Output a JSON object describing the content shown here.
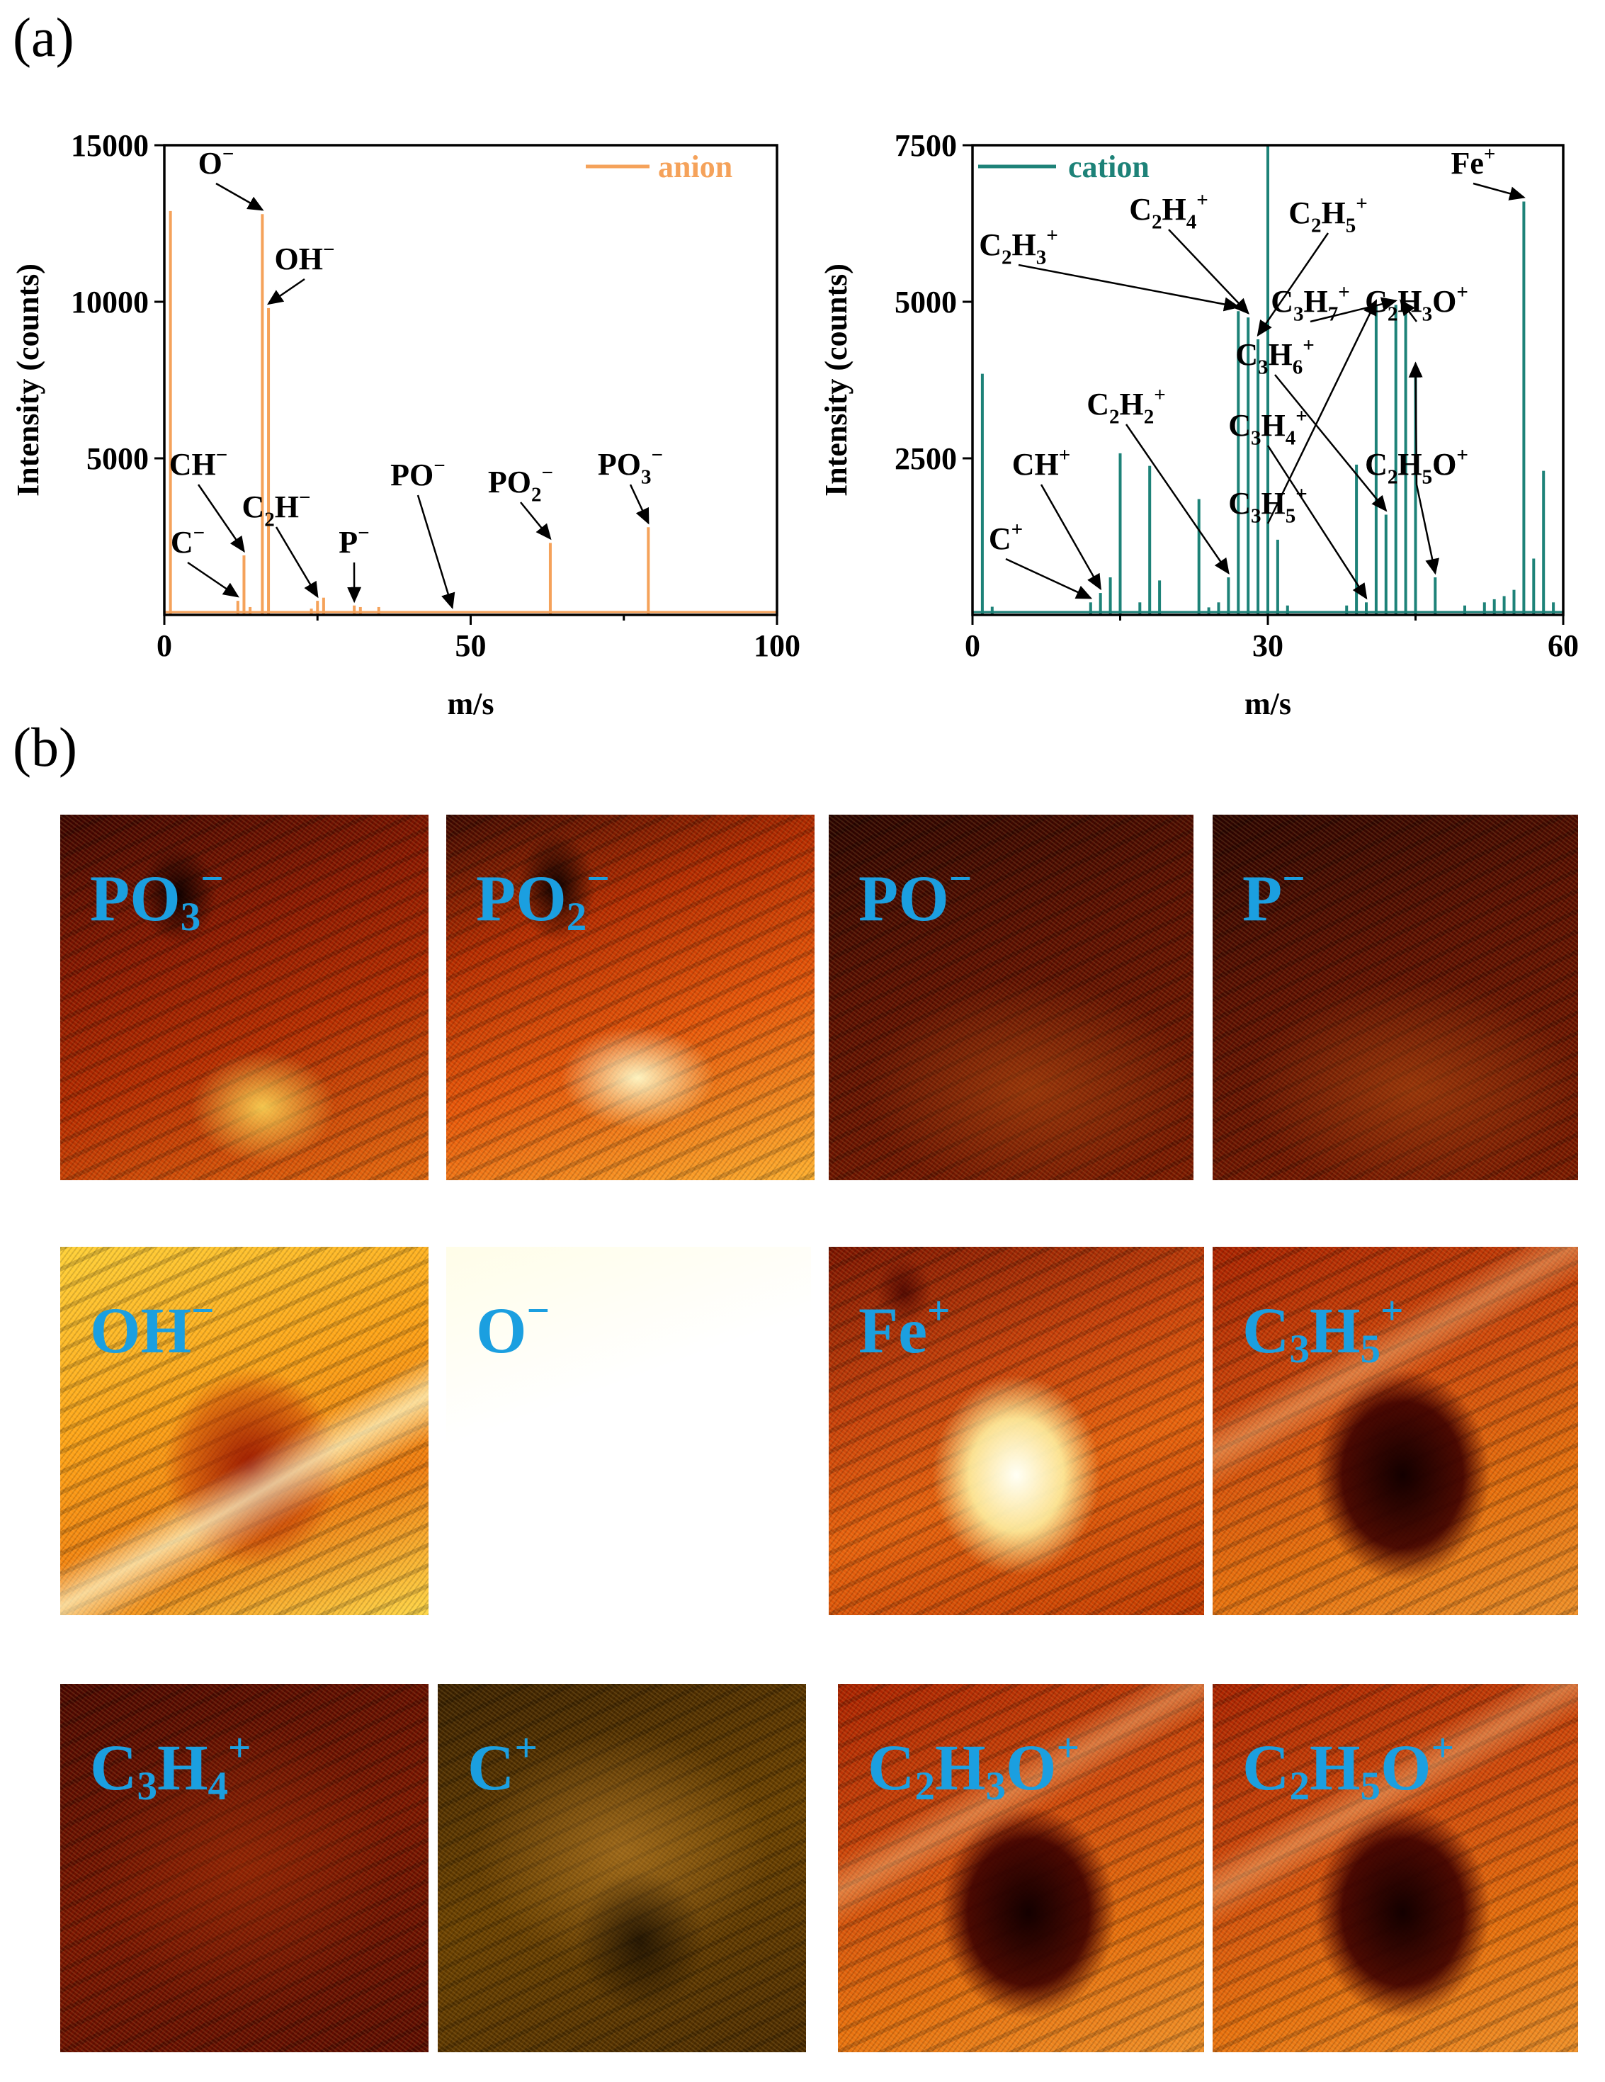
{
  "panel_labels": {
    "a": "(a)",
    "b": "(b)"
  },
  "chart_data": [
    {
      "type": "bar",
      "name": "anion spectrum",
      "xlabel": "m/s",
      "ylabel": "Intensity (counts)",
      "xlim": [
        0,
        100
      ],
      "ylim": [
        0,
        15000
      ],
      "xticks": [
        0,
        50,
        100
      ],
      "yticks": [
        5000,
        10000,
        15000
      ],
      "legend": {
        "label": "anion",
        "position": "top-right"
      },
      "color": "#f5a25a",
      "peaks": [
        {
          "x": 1,
          "y": 12900
        },
        {
          "x": 12,
          "y": 450
        },
        {
          "x": 13,
          "y": 1900
        },
        {
          "x": 14,
          "y": 250
        },
        {
          "x": 16,
          "y": 12800
        },
        {
          "x": 17,
          "y": 9800
        },
        {
          "x": 24,
          "y": 200
        },
        {
          "x": 25,
          "y": 450
        },
        {
          "x": 26,
          "y": 550
        },
        {
          "x": 31,
          "y": 300
        },
        {
          "x": 32,
          "y": 250
        },
        {
          "x": 35,
          "y": 250
        },
        {
          "x": 63,
          "y": 2300
        },
        {
          "x": 79,
          "y": 2800
        }
      ],
      "annotations": [
        {
          "base": "O",
          "sub": "",
          "charge": "−",
          "peak_x": 16,
          "peak_y": 12800
        },
        {
          "base": "OH",
          "sub": "",
          "charge": "−",
          "peak_x": 17,
          "peak_y": 9800
        },
        {
          "base": "CH",
          "sub": "",
          "charge": "−",
          "peak_x": 13,
          "peak_y": 1900
        },
        {
          "base": "C",
          "sub": "",
          "charge": "−",
          "peak_x": 12,
          "peak_y": 450
        },
        {
          "base": "C",
          "sub": "2",
          "tail": "H",
          "charge": "−",
          "peak_x": 25,
          "peak_y": 450
        },
        {
          "base": "P",
          "sub": "",
          "charge": "−",
          "peak_x": 31,
          "peak_y": 300
        },
        {
          "base": "PO",
          "sub": "",
          "charge": "−",
          "peak_x": 47,
          "peak_y": 100
        },
        {
          "base": "PO",
          "sub": "2",
          "charge": "−",
          "peak_x": 63,
          "peak_y": 2300
        },
        {
          "base": "PO",
          "sub": "3",
          "charge": "−",
          "peak_x": 79,
          "peak_y": 2800
        }
      ]
    },
    {
      "type": "bar",
      "name": "cation spectrum",
      "xlabel": "m/s",
      "ylabel": "Intensity (counts)",
      "xlim": [
        0,
        60
      ],
      "ylim": [
        0,
        7500
      ],
      "xticks": [
        0,
        30,
        60
      ],
      "yticks": [
        2500,
        5000,
        7500
      ],
      "legend": {
        "label": "cation",
        "position": "top-left"
      },
      "color": "#1d8278",
      "peaks": [
        {
          "x": 1,
          "y": 3850
        },
        {
          "x": 2,
          "y": 130
        },
        {
          "x": 12,
          "y": 200
        },
        {
          "x": 13,
          "y": 350
        },
        {
          "x": 14,
          "y": 600
        },
        {
          "x": 15,
          "y": 2580
        },
        {
          "x": 17,
          "y": 200
        },
        {
          "x": 18,
          "y": 2380
        },
        {
          "x": 19,
          "y": 550
        },
        {
          "x": 23,
          "y": 1850
        },
        {
          "x": 24,
          "y": 120
        },
        {
          "x": 25,
          "y": 200
        },
        {
          "x": 26,
          "y": 600
        },
        {
          "x": 27,
          "y": 4850
        },
        {
          "x": 28,
          "y": 4750
        },
        {
          "x": 29,
          "y": 4400
        },
        {
          "x": 30,
          "y": 7500
        },
        {
          "x": 31,
          "y": 1200
        },
        {
          "x": 32,
          "y": 150
        },
        {
          "x": 38,
          "y": 150
        },
        {
          "x": 39,
          "y": 2400
        },
        {
          "x": 40,
          "y": 200
        },
        {
          "x": 41,
          "y": 4950
        },
        {
          "x": 42,
          "y": 1600
        },
        {
          "x": 43,
          "y": 4950
        },
        {
          "x": 44,
          "y": 4950
        },
        {
          "x": 45,
          "y": 3950
        },
        {
          "x": 47,
          "y": 600
        },
        {
          "x": 50,
          "y": 150
        },
        {
          "x": 52,
          "y": 200
        },
        {
          "x": 53,
          "y": 250
        },
        {
          "x": 54,
          "y": 300
        },
        {
          "x": 55,
          "y": 400
        },
        {
          "x": 56,
          "y": 6600
        },
        {
          "x": 57,
          "y": 900
        },
        {
          "x": 58,
          "y": 2300
        },
        {
          "x": 59,
          "y": 200
        }
      ],
      "annotations": [
        {
          "base": "Fe",
          "sub": "",
          "charge": "+",
          "peak_x": 56,
          "peak_y": 6600
        },
        {
          "base": "C",
          "sub": "2",
          "tail": "H",
          "sub2": "4",
          "charge": "+",
          "peak_x": 28,
          "peak_y": 4750
        },
        {
          "base": "C",
          "sub": "2",
          "tail": "H",
          "sub2": "5",
          "charge": "+",
          "peak_x": 29,
          "peak_y": 4400
        },
        {
          "base": "C",
          "sub": "2",
          "tail": "H",
          "sub2": "3",
          "charge": "+",
          "peak_x": 27,
          "peak_y": 4850
        },
        {
          "base": "C",
          "sub": "3",
          "tail": "H",
          "sub2": "7",
          "charge": "+",
          "peak_x": 43,
          "peak_y": 4950
        },
        {
          "base": "C",
          "sub": "2",
          "tail": "H",
          "sub2": "3",
          "tail2": "O",
          "charge": "+",
          "peak_x": 43.5,
          "peak_y": 4950
        },
        {
          "base": "C",
          "sub": "3",
          "tail": "H",
          "sub2": "6",
          "charge": "+",
          "peak_x": 42,
          "peak_y": 1600
        },
        {
          "base": "C",
          "sub": "2",
          "tail": "H",
          "sub2": "2",
          "charge": "+",
          "peak_x": 26,
          "peak_y": 600
        },
        {
          "base": "C",
          "sub": "3",
          "tail": "H",
          "sub2": "4",
          "charge": "+",
          "peak_x": 40,
          "peak_y": 200
        },
        {
          "base": "CH",
          "sub": "",
          "charge": "+",
          "peak_x": 13,
          "peak_y": 350
        },
        {
          "base": "C",
          "sub": "2",
          "tail": "H",
          "sub2": "5",
          "tail2": "O",
          "charge": "+",
          "peak_x": 45,
          "peak_y": 3950
        },
        {
          "base": "C",
          "sub": "3",
          "tail": "H",
          "sub2": "5",
          "charge": "+",
          "peak_x": 41,
          "peak_y": 4950
        },
        {
          "base": "C",
          "sub": "",
          "charge": "+",
          "peak_x": 12,
          "peak_y": 200
        },
        {
          "base": "C",
          "sub": "2",
          "tail": "H",
          "sub2": "5",
          "tail2": "O",
          "charge": "+",
          "peak_x": 47,
          "peak_y": 600
        }
      ]
    }
  ],
  "ion_maps": [
    {
      "id": "PO3-",
      "base": "PO",
      "sub": "3",
      "sup": "−",
      "palette": "hot-mid"
    },
    {
      "id": "PO2-",
      "base": "PO",
      "sub": "2",
      "sup": "−",
      "palette": "hot-bright"
    },
    {
      "id": "PO-",
      "base": "PO",
      "sub": "",
      "sup": "−",
      "palette": "noisy-dark"
    },
    {
      "id": "P-",
      "base": "P",
      "sub": "",
      "sup": "−",
      "palette": "noisy-dark"
    },
    {
      "id": "OH-",
      "base": "OH",
      "sub": "",
      "sup": "−",
      "palette": "yellow-dark-spot"
    },
    {
      "id": "O-",
      "base": "O",
      "sub": "",
      "sup": "−",
      "palette": "white"
    },
    {
      "id": "Fe+",
      "base": "Fe",
      "sub": "",
      "sup": "+",
      "palette": "bright-spot"
    },
    {
      "id": "C3H5+",
      "base": "C",
      "sub": "3",
      "tail": "H",
      "sub2": "5",
      "sup": "+",
      "palette": "dark-spot"
    },
    {
      "id": "C3H4+",
      "base": "C",
      "sub": "3",
      "tail": "H",
      "sub2": "4",
      "sup": "+",
      "palette": "noisy-red"
    },
    {
      "id": "C+",
      "base": "C",
      "sub": "",
      "sup": "+",
      "palette": "noisy-gold"
    },
    {
      "id": "C2H3O+",
      "base": "C",
      "sub": "2",
      "tail": "H",
      "sub2": "3",
      "tail2": "O",
      "sup": "+",
      "palette": "dark-spot"
    },
    {
      "id": "C2H5O+",
      "base": "C",
      "sub": "2",
      "tail": "H",
      "sub2": "5",
      "tail2": "O",
      "sup": "+",
      "palette": "dark-spot"
    }
  ]
}
